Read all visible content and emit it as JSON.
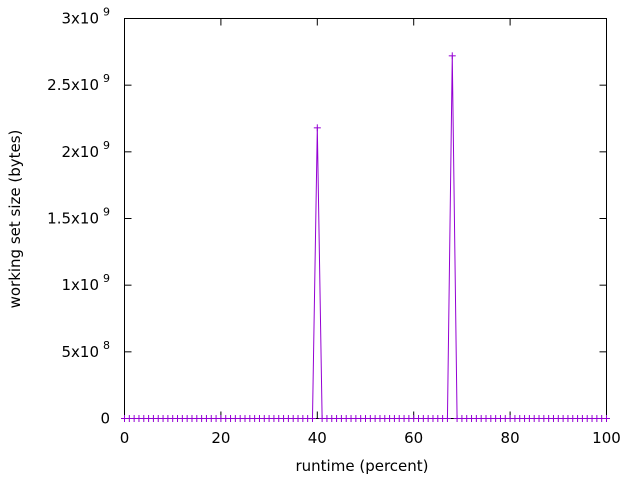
{
  "chart_data": {
    "type": "line",
    "title": "",
    "xlabel": "runtime (percent)",
    "ylabel": "working set size (bytes)",
    "xlim": [
      0,
      100
    ],
    "ylim": [
      0,
      3000000000
    ],
    "x_ticks": [
      {
        "value": 0,
        "label": "0"
      },
      {
        "value": 20,
        "label": "20"
      },
      {
        "value": 40,
        "label": "40"
      },
      {
        "value": 60,
        "label": "60"
      },
      {
        "value": 80,
        "label": "80"
      },
      {
        "value": 100,
        "label": "100"
      }
    ],
    "y_ticks": [
      {
        "value": 0,
        "base": "0",
        "exp": ""
      },
      {
        "value": 500000000,
        "base": "5x10",
        "exp": "8"
      },
      {
        "value": 1000000000,
        "base": "1x10",
        "exp": "9"
      },
      {
        "value": 1500000000,
        "base": "1.5x10",
        "exp": "9"
      },
      {
        "value": 2000000000,
        "base": "2x10",
        "exp": "9"
      },
      {
        "value": 2500000000,
        "base": "2.5x10",
        "exp": "9"
      },
      {
        "value": 3000000000,
        "base": "3x10",
        "exp": "9"
      }
    ],
    "grid": false,
    "marker": "plus",
    "color": "#9400d3",
    "series": [
      {
        "name": "",
        "points": [
          [
            0,
            0
          ],
          [
            1,
            0
          ],
          [
            2,
            0
          ],
          [
            3,
            0
          ],
          [
            4,
            0
          ],
          [
            5,
            0
          ],
          [
            6,
            0
          ],
          [
            7,
            0
          ],
          [
            8,
            0
          ],
          [
            9,
            0
          ],
          [
            10,
            0
          ],
          [
            11,
            0
          ],
          [
            12,
            0
          ],
          [
            13,
            0
          ],
          [
            14,
            0
          ],
          [
            15,
            0
          ],
          [
            16,
            0
          ],
          [
            17,
            0
          ],
          [
            18,
            0
          ],
          [
            19,
            0
          ],
          [
            20,
            0
          ],
          [
            21,
            0
          ],
          [
            22,
            0
          ],
          [
            23,
            0
          ],
          [
            24,
            0
          ],
          [
            25,
            0
          ],
          [
            26,
            0
          ],
          [
            27,
            0
          ],
          [
            28,
            0
          ],
          [
            29,
            0
          ],
          [
            30,
            0
          ],
          [
            31,
            0
          ],
          [
            32,
            0
          ],
          [
            33,
            0
          ],
          [
            34,
            0
          ],
          [
            35,
            0
          ],
          [
            36,
            0
          ],
          [
            37,
            0
          ],
          [
            38,
            0
          ],
          [
            39,
            0
          ],
          [
            40,
            2180000000
          ],
          [
            41,
            0
          ],
          [
            42,
            0
          ],
          [
            43,
            0
          ],
          [
            44,
            0
          ],
          [
            45,
            0
          ],
          [
            46,
            0
          ],
          [
            47,
            0
          ],
          [
            48,
            0
          ],
          [
            49,
            0
          ],
          [
            50,
            0
          ],
          [
            51,
            0
          ],
          [
            52,
            0
          ],
          [
            53,
            0
          ],
          [
            54,
            0
          ],
          [
            55,
            0
          ],
          [
            56,
            0
          ],
          [
            57,
            0
          ],
          [
            58,
            0
          ],
          [
            59,
            0
          ],
          [
            60,
            0
          ],
          [
            61,
            0
          ],
          [
            62,
            0
          ],
          [
            63,
            0
          ],
          [
            64,
            0
          ],
          [
            65,
            0
          ],
          [
            66,
            0
          ],
          [
            67,
            0
          ],
          [
            68,
            2720000000
          ],
          [
            69,
            0
          ],
          [
            70,
            0
          ],
          [
            71,
            0
          ],
          [
            72,
            0
          ],
          [
            73,
            0
          ],
          [
            74,
            0
          ],
          [
            75,
            0
          ],
          [
            76,
            0
          ],
          [
            77,
            0
          ],
          [
            78,
            0
          ],
          [
            79,
            0
          ],
          [
            80,
            0
          ],
          [
            81,
            0
          ],
          [
            82,
            0
          ],
          [
            83,
            0
          ],
          [
            84,
            0
          ],
          [
            85,
            0
          ],
          [
            86,
            0
          ],
          [
            87,
            0
          ],
          [
            88,
            0
          ],
          [
            89,
            0
          ],
          [
            90,
            0
          ],
          [
            91,
            0
          ],
          [
            92,
            0
          ],
          [
            93,
            0
          ],
          [
            94,
            0
          ],
          [
            95,
            0
          ],
          [
            96,
            0
          ],
          [
            97,
            0
          ],
          [
            98,
            0
          ],
          [
            99,
            0
          ],
          [
            100,
            0
          ]
        ]
      }
    ]
  }
}
